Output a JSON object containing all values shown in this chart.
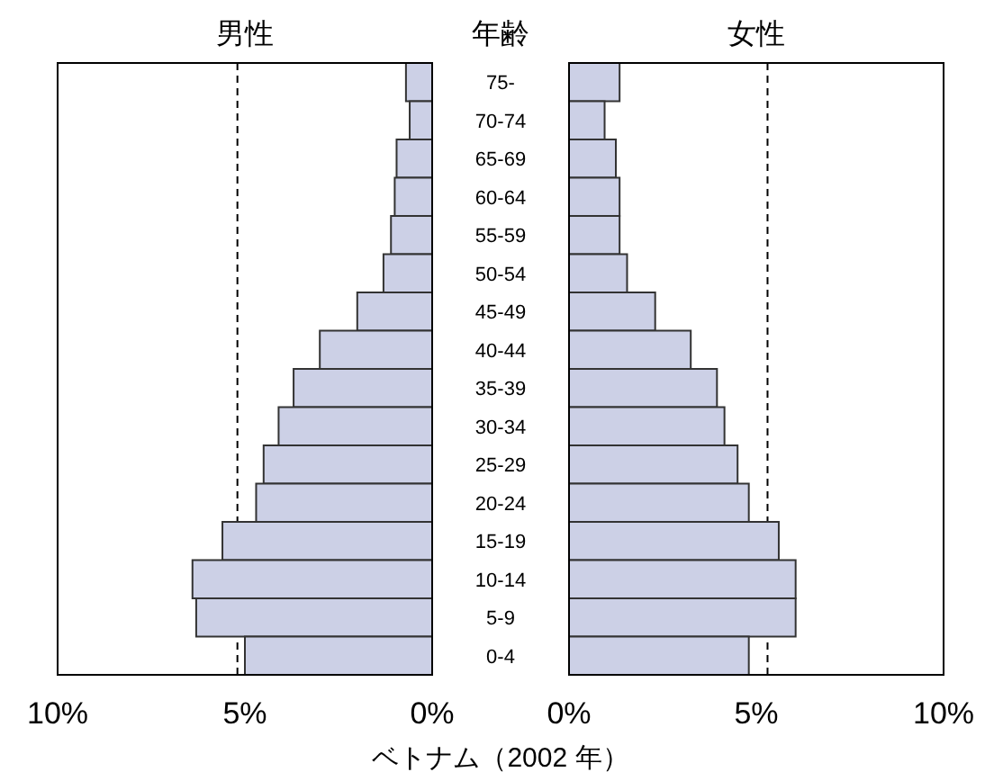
{
  "chart_data": [
    {
      "type": "bar",
      "orientation": "horizontal",
      "title": "男性",
      "ylabel": "年齢",
      "color": "#ccd0e6",
      "categories": [
        "75-",
        "70-74",
        "65-69",
        "60-64",
        "55-59",
        "50-54",
        "45-49",
        "40-44",
        "35-39",
        "30-34",
        "25-29",
        "20-24",
        "15-19",
        "10-14",
        "5-9",
        "0-4"
      ],
      "values": [
        0.7,
        0.6,
        0.95,
        1.0,
        1.1,
        1.3,
        2.0,
        3.0,
        3.7,
        4.1,
        4.5,
        4.7,
        5.6,
        6.4,
        6.3,
        5.0
      ],
      "xlim": [
        10,
        0
      ],
      "xticks": [
        {
          "value": 10,
          "label": "10%"
        },
        {
          "value": 5,
          "label": "5%"
        },
        {
          "value": 0,
          "label": "0%"
        }
      ],
      "ref_lines": [
        {
          "axis": "x",
          "value": 5.2,
          "line_style": "dashed"
        }
      ],
      "annotations": [
        "ベトナム（2002 年）"
      ]
    },
    {
      "type": "bar",
      "orientation": "horizontal",
      "title": "女性",
      "tick_labels": "x",
      "color": "#ccd0e6",
      "categories": [
        null,
        null,
        null,
        null,
        null,
        null,
        null,
        null,
        null,
        null,
        null,
        null,
        null,
        null,
        null,
        null
      ],
      "values": [
        1.35,
        0.95,
        1.25,
        1.35,
        1.35,
        1.55,
        2.3,
        3.25,
        3.95,
        4.15,
        4.5,
        4.8,
        5.6,
        6.05,
        6.05,
        4.8
      ],
      "xlim": [
        0,
        10
      ],
      "xticks": [
        {
          "value": 0,
          "label": "0%"
        },
        {
          "value": 5,
          "label": "5%"
        },
        {
          "value": 10,
          "label": "10%"
        }
      ],
      "ref_lines": [
        {
          "axis": "x",
          "value": 5.3,
          "line_style": "dashed"
        }
      ]
    }
  ]
}
